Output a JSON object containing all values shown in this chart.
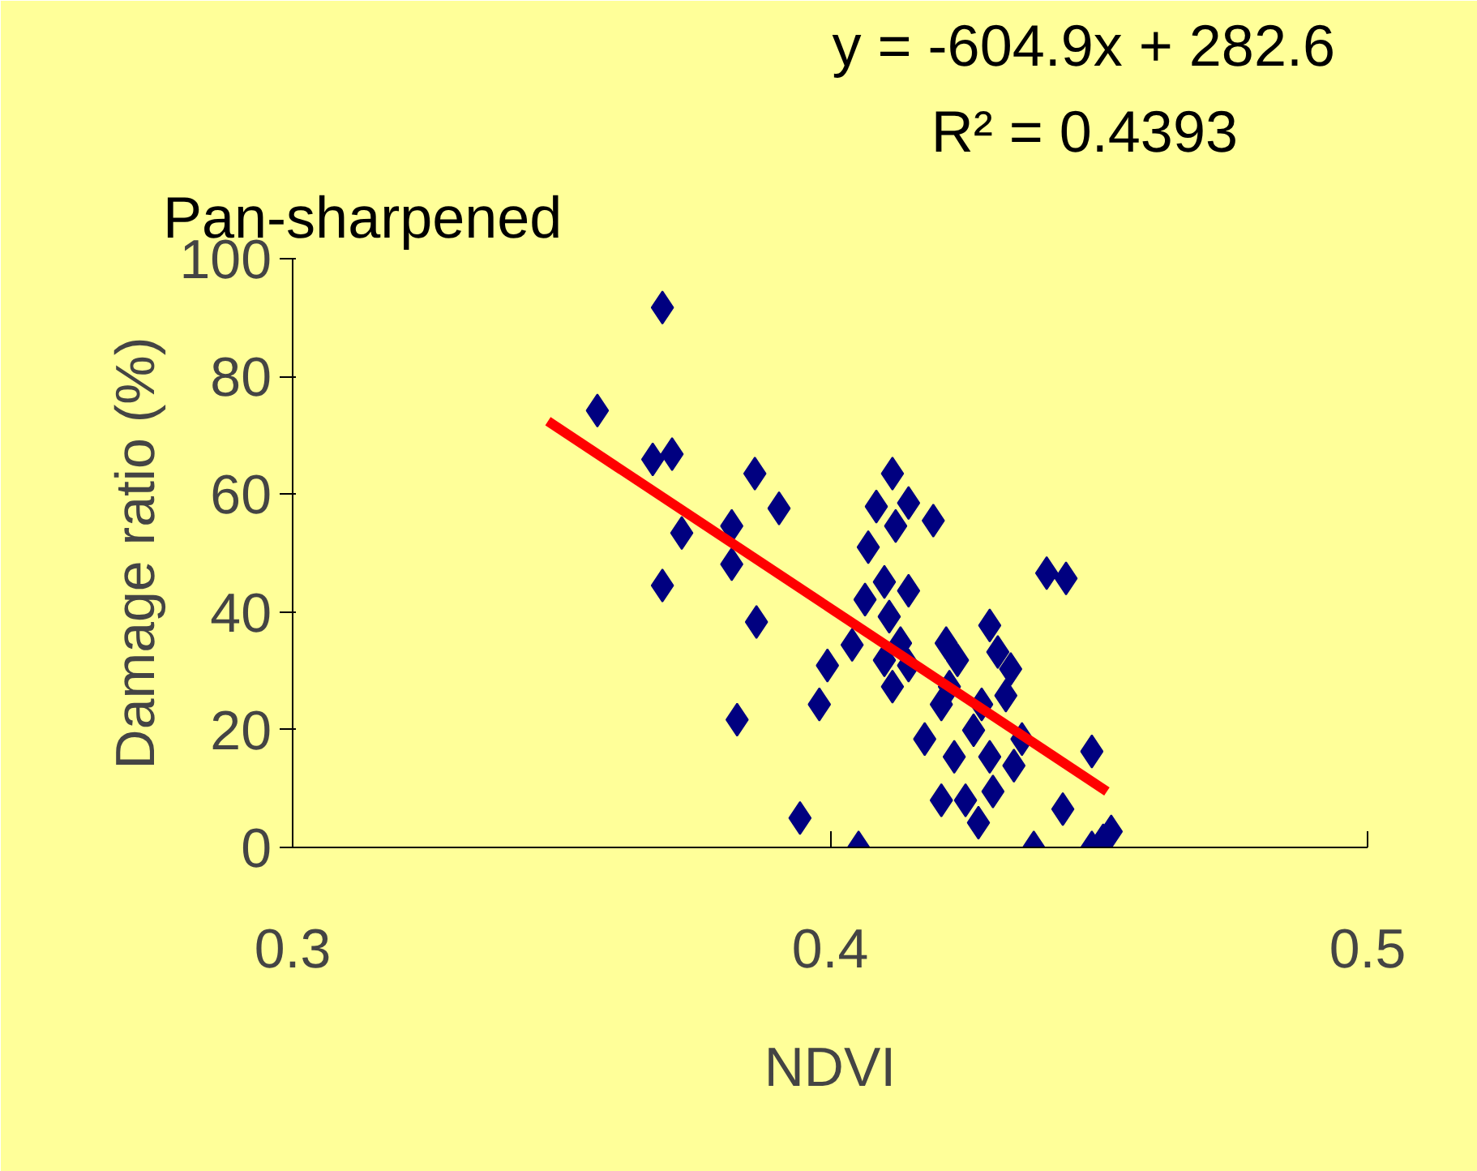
{
  "chart_data": {
    "type": "scatter",
    "title": "Pan-sharpened",
    "xlabel": "NDVI",
    "ylabel": "Damage ratio (%)",
    "annotations": [
      "y = -604.9x + 282.6",
      "R² = 0.4393"
    ],
    "xlim": [
      0.3,
      0.5
    ],
    "ylim": [
      0,
      100
    ],
    "xticks": [
      0.3,
      0.4,
      0.5
    ],
    "yticks": [
      0,
      20,
      40,
      60,
      80,
      100
    ],
    "grid": false,
    "series": [
      {
        "marker": "diamond",
        "color": "#000080",
        "x": [
          0.3567,
          0.3688,
          0.367,
          0.3706,
          0.3724,
          0.3688,
          0.3817,
          0.3817,
          0.386,
          0.3905,
          0.3863,
          0.3827,
          0.3944,
          0.398,
          0.3995,
          0.4053,
          0.4041,
          0.4065,
          0.4071,
          0.4086,
          0.4116,
          0.4122,
          0.4146,
          0.4192,
          0.4101,
          0.411,
          0.4131,
          0.4146,
          0.4116,
          0.4101,
          0.4146,
          0.4176,
          0.4207,
          0.4216,
          0.4222,
          0.4207,
          0.4231,
          0.4267,
          0.4282,
          0.4297,
          0.4312,
          0.4327,
          0.4252,
          0.4276,
          0.4297,
          0.4303,
          0.4342,
          0.4357,
          0.4379,
          0.4403,
          0.4439,
          0.4433,
          0.4487,
          0.4487,
          0.4508,
          0.4523,
          0.4237,
          0.4336
        ],
        "values": [
          74.2,
          91.7,
          65.9,
          66.8,
          53.4,
          44.5,
          54.6,
          48.1,
          63.5,
          57.6,
          38.3,
          21.7,
          5.0,
          24.3,
          30.9,
          0,
          34.4,
          42.1,
          51.0,
          57.9,
          63.5,
          54.6,
          58.5,
          55.5,
          45.1,
          39.2,
          34.7,
          30.9,
          27.3,
          31.8,
          43.6,
          18.4,
          8.0,
          34.7,
          27.3,
          24.3,
          15.4,
          19.9,
          24.3,
          37.7,
          33.2,
          25.8,
          8.0,
          4.2,
          15.4,
          9.5,
          13.9,
          18.4,
          0,
          46.6,
          45.7,
          6.5,
          16.3,
          0,
          1.2,
          2.7,
          31.8,
          30.3
        ]
      },
      {
        "type": "line",
        "color": "#ff0000",
        "x": [
          0.3475,
          0.4515
        ],
        "values": [
          72.4,
          9.5
        ]
      }
    ]
  }
}
